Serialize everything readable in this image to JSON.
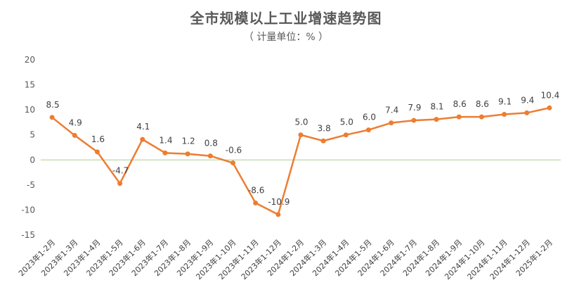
{
  "colors": {
    "series": "#ED7D31",
    "zero_line": "#A9D18E",
    "text": "#595959"
  },
  "chart_data": {
    "type": "line",
    "title": "全市规模以上工业增速趋势图",
    "subtitle": "（ 计量单位：% ）",
    "ylim": [
      -15,
      20
    ],
    "yticks": [
      -15,
      -10,
      -5,
      0,
      5,
      10,
      15,
      20
    ],
    "grid": false,
    "legend": "none",
    "categories": [
      "2023年1-2月",
      "2023年1-3月",
      "2023年1-4月",
      "2023年1-5月",
      "2023年1-6月",
      "2023年1-7月",
      "2023年1-8月",
      "2023年1-9月",
      "2023年1-10月",
      "2023年1-11月",
      "2023年1-12月",
      "2024年1-2月",
      "2024年1-3月",
      "2024年1-4月",
      "2024年1-5月",
      "2024年1-6月",
      "2024年1-7月",
      "2024年1-8月",
      "2024年1-9月",
      "2024年1-10月",
      "2024年1-11月",
      "2024年1-12月",
      "2025年1-2月"
    ],
    "values": [
      8.5,
      4.9,
      1.6,
      -4.7,
      4.1,
      1.4,
      1.2,
      0.8,
      -0.6,
      -8.6,
      -10.9,
      5.0,
      3.8,
      5.0,
      6.0,
      7.4,
      7.9,
      8.1,
      8.6,
      8.6,
      9.1,
      9.4,
      10.4
    ],
    "data_labels": [
      "8.5",
      "4.9",
      "1.6",
      "-4.7",
      "4.1",
      "1.4",
      "1.2",
      "0.8",
      "-0.6",
      "-8.6",
      "-10.9",
      "5.0",
      "3.8",
      "5.0",
      "6.0",
      "7.4",
      "7.9",
      "8.1",
      "8.6",
      "8.6",
      "9.1",
      "9.4",
      "10.4"
    ]
  }
}
